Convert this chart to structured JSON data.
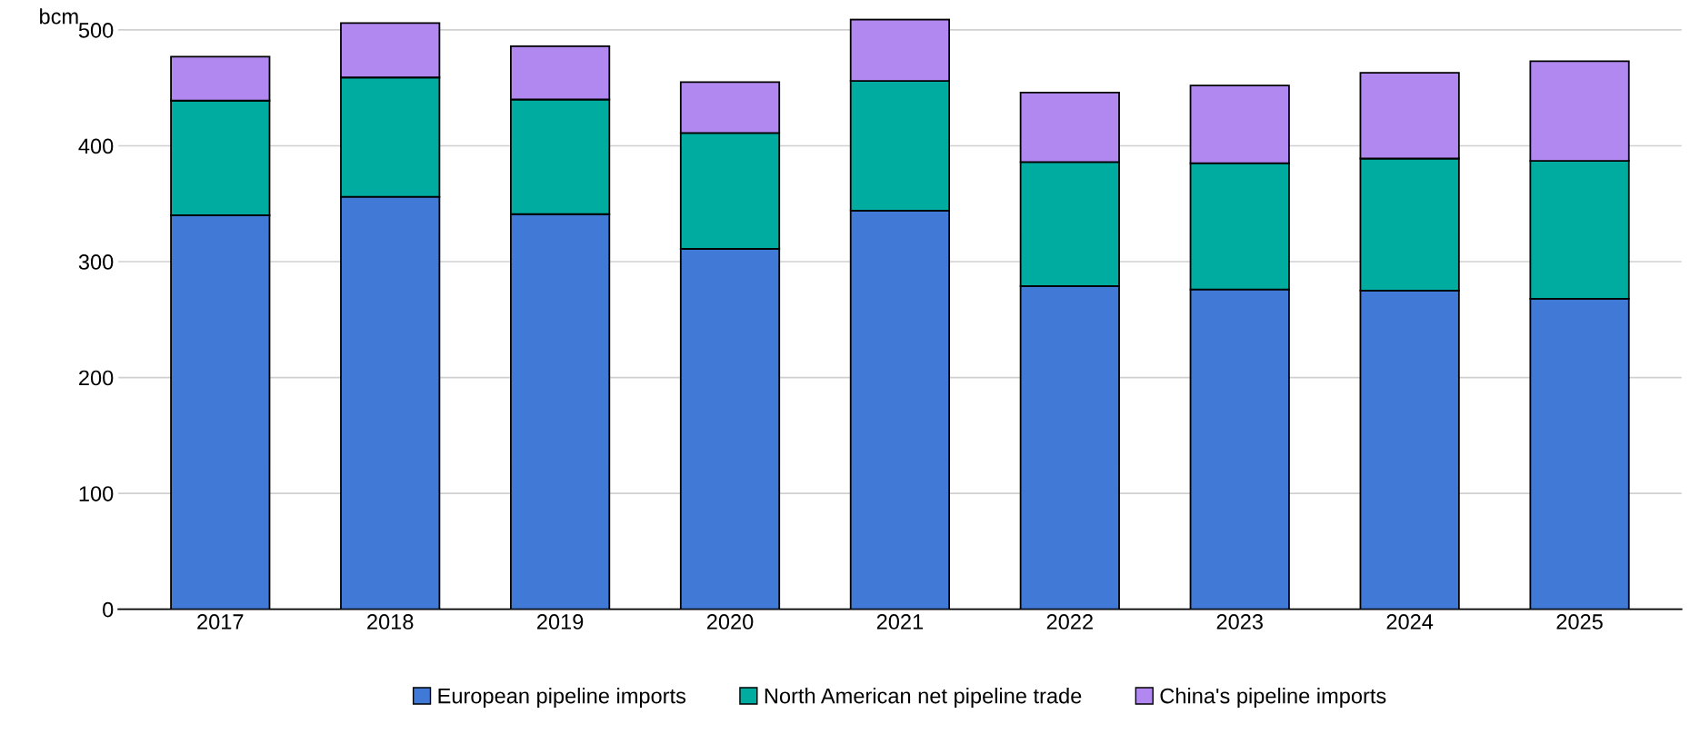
{
  "chart_data": {
    "type": "bar",
    "stacked": true,
    "ylabel": "bcm",
    "categories": [
      "2017",
      "2018",
      "2019",
      "2020",
      "2021",
      "2022",
      "2023",
      "2024",
      "2025"
    ],
    "series": [
      {
        "name": "European pipeline imports",
        "color": "#4179d6",
        "values": [
          340,
          356,
          341,
          311,
          344,
          279,
          276,
          275,
          268
        ]
      },
      {
        "name": "North American net pipeline trade",
        "color": "#00ab9f",
        "values": [
          99,
          103,
          99,
          100,
          112,
          107,
          109,
          114,
          119
        ]
      },
      {
        "name": "China's pipeline imports",
        "color": "#b088f0",
        "values": [
          38,
          47,
          46,
          44,
          53,
          60,
          67,
          74,
          86
        ]
      }
    ],
    "ylim": [
      0,
      510
    ],
    "yticks": [
      0,
      100,
      200,
      300,
      400,
      500
    ],
    "grid": "y",
    "legend": "bottom"
  }
}
